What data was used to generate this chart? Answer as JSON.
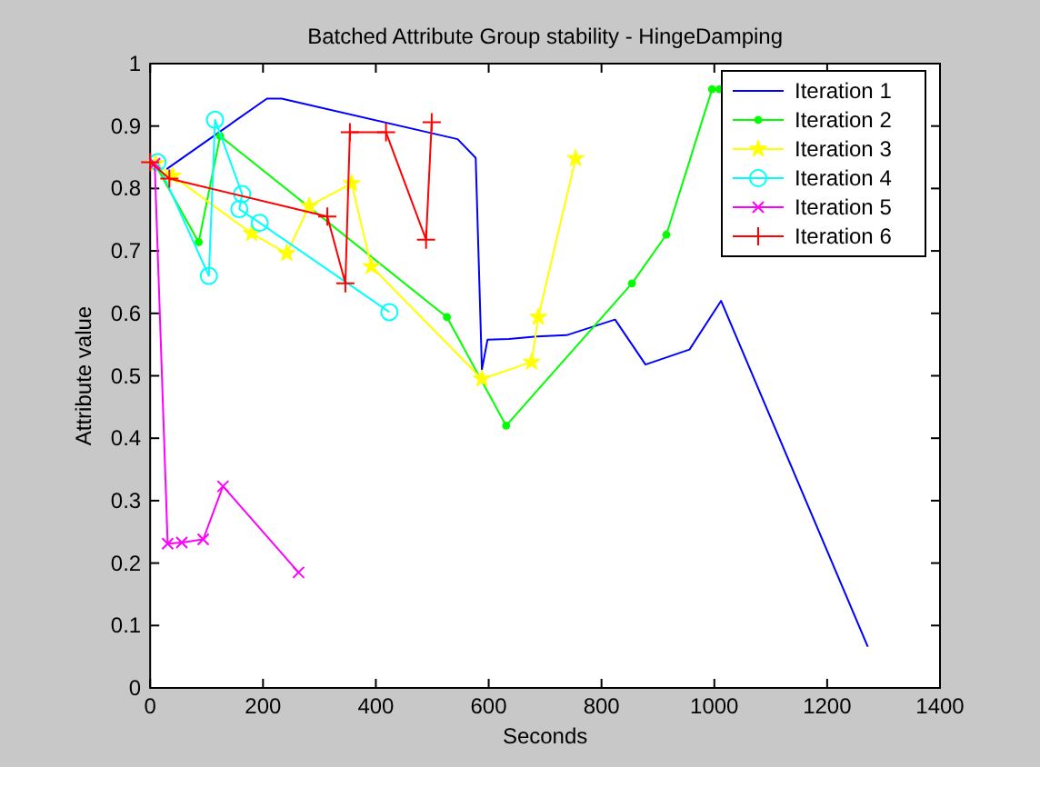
{
  "chart_data": {
    "type": "line",
    "title": "Batched Attribute Group stability - HingeDamping",
    "xlabel": "Seconds",
    "ylabel": "Attribute value",
    "xlim": [
      0,
      1400
    ],
    "xticks": [
      0,
      200,
      400,
      600,
      800,
      1000,
      1200,
      1400
    ],
    "ylim": [
      0,
      1
    ],
    "yticks": [
      0,
      0.1,
      0.2,
      0.3,
      0.4,
      0.5,
      0.6,
      0.7,
      0.8,
      0.9,
      1
    ],
    "grid": false,
    "legend": "top right",
    "line_style": "solid",
    "series": [
      {
        "name": "Iteration 1",
        "color": "#0000ff",
        "marker": "none",
        "x": [
          29,
          207,
          233,
          545,
          577,
          588,
          598,
          636,
          685,
          738,
          824,
          878,
          956,
          1012,
          1272
        ],
        "values": [
          0.831,
          0.944,
          0.944,
          0.879,
          0.849,
          0.51,
          0.558,
          0.559,
          0.563,
          0.565,
          0.59,
          0.518,
          0.542,
          0.62,
          0.066
        ]
      },
      {
        "name": "Iteration 2",
        "color": "#00ff00",
        "marker": "point",
        "x": [
          8,
          86,
          124,
          526,
          631,
          854,
          915,
          996,
          1009
        ],
        "values": [
          0.84,
          0.714,
          0.884,
          0.594,
          0.42,
          0.648,
          0.726,
          0.959,
          0.959
        ]
      },
      {
        "name": "Iteration 3",
        "color": "#ffff00",
        "marker": "star",
        "x": [
          10,
          40,
          180,
          242,
          282,
          357,
          392,
          588,
          676,
          688,
          754
        ],
        "values": [
          0.84,
          0.82,
          0.728,
          0.696,
          0.772,
          0.808,
          0.675,
          0.495,
          0.522,
          0.594,
          0.848
        ]
      },
      {
        "name": "Iteration 4",
        "color": "#00ffff",
        "marker": "circle",
        "x": [
          13,
          104,
          115,
          163,
          158,
          194,
          424
        ],
        "values": [
          0.842,
          0.66,
          0.91,
          0.791,
          0.767,
          0.745,
          0.602
        ]
      },
      {
        "name": "Iteration 5",
        "color": "#ff00ff",
        "marker": "cross",
        "x": [
          8,
          31,
          56,
          94,
          129,
          263
        ],
        "values": [
          0.84,
          0.231,
          0.233,
          0.238,
          0.323,
          0.185
        ]
      },
      {
        "name": "Iteration 6",
        "color": "#ff0000",
        "marker": "plus",
        "x": [
          0,
          34,
          314,
          346,
          354,
          418,
          489,
          499
        ],
        "values": [
          0.842,
          0.816,
          0.755,
          0.648,
          0.89,
          0.89,
          0.718,
          0.906
        ]
      }
    ]
  }
}
